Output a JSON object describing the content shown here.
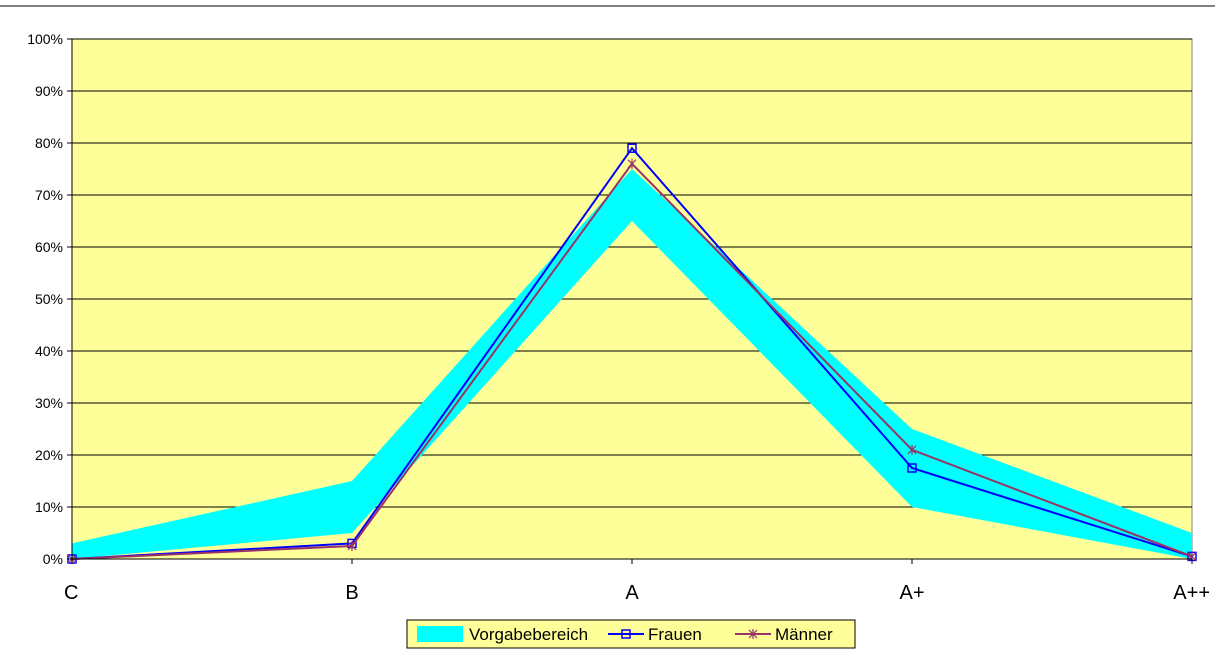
{
  "chart_data": {
    "type": "line",
    "categories": [
      "C",
      "B",
      "A",
      "A+",
      "A++"
    ],
    "ylim": [
      0,
      100
    ],
    "y_ticks": [
      0,
      10,
      20,
      30,
      40,
      50,
      60,
      70,
      80,
      90,
      100
    ],
    "y_tick_labels": [
      "0%",
      "10%",
      "20%",
      "30%",
      "40%",
      "50%",
      "60%",
      "70%",
      "80%",
      "90%",
      "100%"
    ],
    "grid": true,
    "legend_position": "bottom",
    "band": {
      "name": "Vorgabebereich",
      "lower": [
        0,
        5,
        65,
        10,
        0
      ],
      "upper": [
        3,
        15,
        75,
        25,
        5
      ],
      "color": "#00FFFF"
    },
    "series": [
      {
        "name": "Frauen",
        "values": [
          0,
          3,
          79,
          17.5,
          0.5
        ],
        "color": "#0000FF",
        "marker": "square"
      },
      {
        "name": "Männer",
        "values": [
          0,
          2.5,
          76,
          21,
          0.5
        ],
        "color": "#993366",
        "marker": "star"
      }
    ],
    "plot_background": "#FFFF99"
  }
}
